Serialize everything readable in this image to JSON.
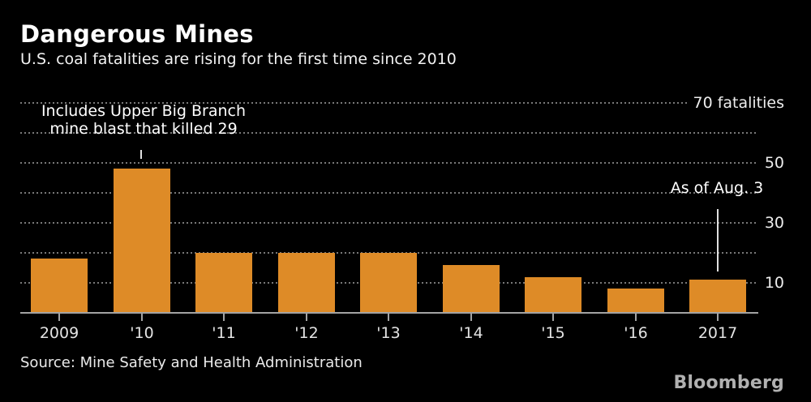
{
  "header": {
    "title": "Dangerous Mines",
    "subtitle": "U.S. coal fatalities are rising for the first time since 2010"
  },
  "chart_data": {
    "type": "bar",
    "title": "Dangerous Mines",
    "subtitle": "U.S. coal fatalities are rising for the first time since 2010",
    "categories": [
      "2009",
      "'10",
      "'11",
      "'12",
      "'13",
      "'14",
      "'15",
      "'16",
      "2017"
    ],
    "values": [
      18,
      48,
      20,
      20,
      20,
      16,
      12,
      8,
      11
    ],
    "unit": "fatalities",
    "ylim": [
      0,
      72
    ],
    "grid": "horizontal-dotted",
    "legend_position": "none",
    "yaxis": {
      "side": "right",
      "gridline_values": [
        10,
        20,
        30,
        40,
        50,
        60,
        70
      ],
      "labels": [
        {
          "value": 10,
          "label": "10"
        },
        {
          "value": 30,
          "label": "30"
        },
        {
          "value": 50,
          "label": "50"
        },
        {
          "value": 70,
          "label": "70 fatalities"
        }
      ]
    },
    "annotations": [
      {
        "lines": [
          "Includes Upper Big Branch",
          "mine blast that killed 29"
        ],
        "target": "'10"
      },
      {
        "lines": [
          "As of Aug. 3"
        ],
        "target": "2017"
      }
    ]
  },
  "footer": {
    "source": "Source: Mine Safety and Health Administration",
    "brand": "Bloomberg"
  },
  "colors": {
    "background": "#000000",
    "bar": "#de8b27",
    "title_text": "#ffffff",
    "body_text": "#f2f2f2",
    "gridline": "#787878",
    "axis": "#a3a3a3",
    "brand_text": "#b1b1b1"
  }
}
